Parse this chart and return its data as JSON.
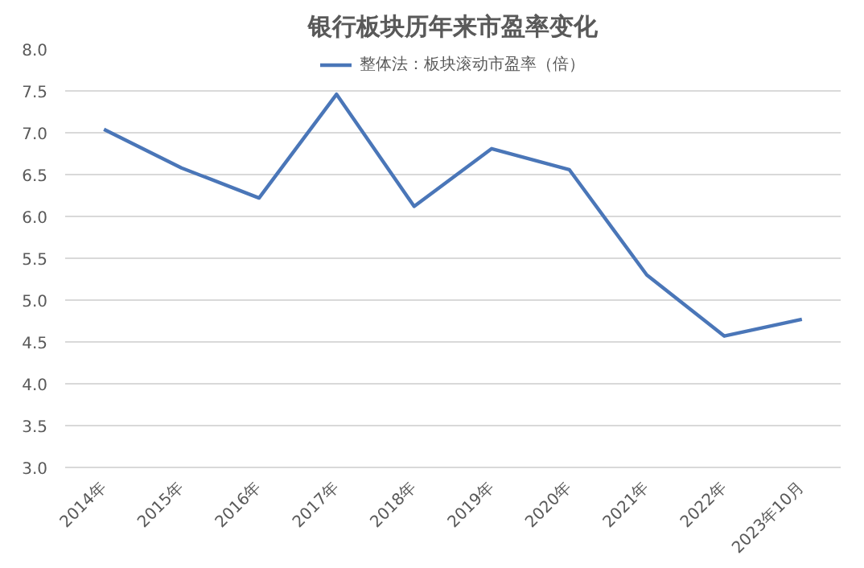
{
  "chart_data": {
    "type": "line",
    "title": "银行板块历年来市盈率变化",
    "categories": [
      "2014年",
      "2015年",
      "2016年",
      "2017年",
      "2018年",
      "2019年",
      "2020年",
      "2021年",
      "2022年",
      "2023年10月"
    ],
    "series": [
      {
        "name": "整体法：板块滚动市盈率（倍）",
        "color": "#4a76b8",
        "values": [
          7.04,
          6.58,
          6.22,
          7.46,
          6.12,
          6.81,
          6.56,
          5.3,
          4.57,
          4.77
        ]
      }
    ],
    "ylim": [
      3,
      8
    ],
    "yticks": [
      {
        "value": 3,
        "label": "3.0"
      },
      {
        "value": 3.5,
        "label": "3.5"
      },
      {
        "value": 4,
        "label": "4.0"
      },
      {
        "value": 4.5,
        "label": "4.5"
      },
      {
        "value": 5,
        "label": "5.0"
      },
      {
        "value": 5.5,
        "label": "5.5"
      },
      {
        "value": 6,
        "label": "6.0"
      },
      {
        "value": 6.5,
        "label": "6.5"
      },
      {
        "value": 7,
        "label": "7.0"
      },
      {
        "value": 7.5,
        "label": "7.5"
      },
      {
        "value": 8,
        "label": "8.0"
      }
    ],
    "grid": "y",
    "legend": "top",
    "marker": "none",
    "line_style": "solid"
  }
}
